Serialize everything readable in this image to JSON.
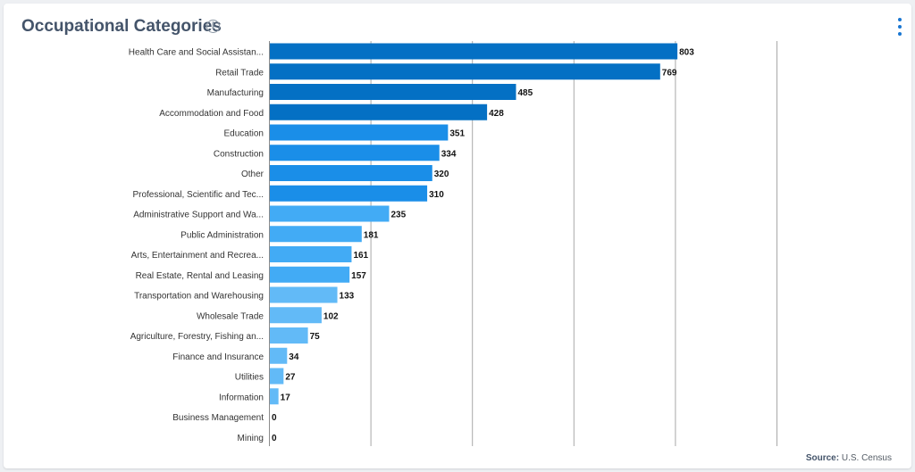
{
  "header": {
    "title": "Occupational Categories",
    "info_icon": "info-circle-icon",
    "menu_icon": "vertical-dots-icon"
  },
  "footer": {
    "source_label": "Source:",
    "source_value": "U.S. Census"
  },
  "colors": {
    "dark": "#0470c4",
    "mid": "#1a8ee8",
    "light": "#42abf5",
    "lighter": "#62baf7",
    "grid": "#a8a8a8",
    "title": "#44546a"
  },
  "chart_data": {
    "type": "bar",
    "orientation": "horizontal",
    "title": "Occupational Categories",
    "xlabel": "",
    "ylabel": "",
    "xlim": [
      0,
      1000
    ],
    "grid": true,
    "categories": [
      "Health Care and Social Assistan...",
      "Retail Trade",
      "Manufacturing",
      "Accommodation and Food",
      "Education",
      "Construction",
      "Other",
      "Professional, Scientific and Tec...",
      "Administrative Support and Wa...",
      "Public Administration",
      "Arts, Entertainment and Recrea...",
      "Real Estate, Rental and Leasing",
      "Transportation and Warehousing",
      "Wholesale Trade",
      "Agriculture, Forestry, Fishing an...",
      "Finance and Insurance",
      "Utilities",
      "Information",
      "Business Management",
      "Mining"
    ],
    "values": [
      803,
      769,
      485,
      428,
      351,
      334,
      320,
      310,
      235,
      181,
      161,
      157,
      133,
      102,
      75,
      34,
      27,
      17,
      0,
      0
    ]
  }
}
